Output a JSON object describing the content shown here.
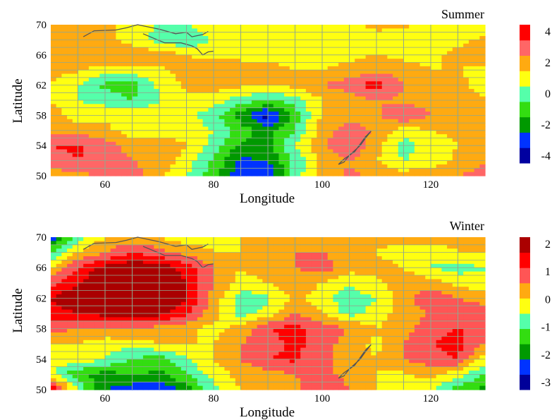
{
  "palettes": {
    "summer": [
      "#0000a0",
      "#0033ff",
      "#009900",
      "#33dd11",
      "#55ffaa",
      "#ffff11",
      "#ffaa11",
      "#ff6666",
      "#ff0000"
    ],
    "winter": [
      "#000099",
      "#0033ff",
      "#009900",
      "#33dd11",
      "#55ffaa",
      "#ffff11",
      "#ffaa11",
      "#ff5555",
      "#ff0000",
      "#aa0000"
    ]
  },
  "chart_data": [
    {
      "type": "heatmap",
      "title": "Summer",
      "xlabel": "Longitude",
      "ylabel": "Latitude",
      "xlim": [
        50,
        130
      ],
      "ylim": [
        50,
        70
      ],
      "x_ticks": [
        "60",
        "80",
        "100",
        "120"
      ],
      "y_ticks": [
        "50",
        "54",
        "58",
        "62",
        "66",
        "70"
      ],
      "colorbar_ticks": [
        "4",
        "2",
        "0",
        "-2",
        "-4"
      ],
      "colorbar_levels": [
        -5,
        -4,
        -3,
        -2,
        -1,
        0,
        1,
        2,
        3,
        4
      ],
      "grid": true,
      "x": [
        50,
        55,
        60,
        65,
        70,
        75,
        80,
        85,
        90,
        95,
        100,
        105,
        110,
        115,
        120,
        125,
        130
      ],
      "y": [
        50,
        52,
        54,
        56,
        58,
        60,
        62,
        64,
        66,
        68,
        70
      ],
      "z": [
        [
          0.5,
          0.8,
          1.0,
          1.5,
          0.3,
          -1.0,
          -2.5,
          -4.8,
          -5.0,
          -1.5,
          0.5,
          1.2,
          0.8,
          0.5,
          0.6,
          1.0,
          1.5
        ],
        [
          1.5,
          2.0,
          1.5,
          1.0,
          0.6,
          -0.5,
          -2.2,
          -4.2,
          -4.0,
          -1.8,
          0.2,
          1.0,
          0.0,
          -1.0,
          -0.5,
          0.2,
          0.8
        ],
        [
          2.0,
          2.2,
          1.5,
          0.6,
          0.5,
          0.2,
          -1.5,
          -3.2,
          -3.2,
          -1.0,
          0.8,
          2.0,
          0.5,
          -1.5,
          -0.5,
          0.0,
          0.4
        ],
        [
          0.8,
          0.5,
          0.2,
          -0.5,
          -0.5,
          -0.5,
          -1.0,
          -2.5,
          -3.5,
          -2.0,
          0.5,
          1.5,
          0.8,
          -0.5,
          0.0,
          0.2,
          0.3
        ],
        [
          0.5,
          -0.5,
          -0.2,
          -0.2,
          -0.5,
          -0.8,
          -1.5,
          -3.5,
          -5.5,
          -2.5,
          0.2,
          0.5,
          0.8,
          2.0,
          1.0,
          0.4,
          0.5
        ],
        [
          0.0,
          -1.0,
          -1.5,
          -2.0,
          -1.0,
          -0.2,
          -0.5,
          -1.5,
          -2.0,
          -1.5,
          0.0,
          0.5,
          1.0,
          0.8,
          0.5,
          0.3,
          0.2
        ],
        [
          0.0,
          -1.0,
          -2.2,
          -2.5,
          -0.8,
          0.2,
          0.5,
          0.2,
          0.0,
          0.3,
          1.0,
          1.5,
          2.5,
          1.0,
          0.0,
          0.3,
          -0.5
        ],
        [
          0.2,
          0.2,
          -0.5,
          -0.3,
          -0.2,
          0.5,
          1.0,
          0.5,
          0.2,
          0.0,
          0.0,
          0.3,
          0.8,
          0.5,
          0.0,
          0.0,
          -0.3
        ],
        [
          0.6,
          0.8,
          1.0,
          0.8,
          0.5,
          0.0,
          -0.5,
          -0.3,
          -0.2,
          -0.3,
          -0.3,
          -0.3,
          0.0,
          -0.3,
          -0.3,
          0.3,
          0.5
        ],
        [
          0.2,
          0.5,
          0.5,
          -0.5,
          -1.5,
          -2.0,
          -0.8,
          -0.3,
          -0.5,
          -0.8,
          -0.5,
          -0.2,
          -0.3,
          -0.5,
          -0.5,
          -0.3,
          0.2
        ],
        [
          0.5,
          0.5,
          0.3,
          -0.5,
          -1.0,
          -1.0,
          -0.5,
          -0.5,
          -0.5,
          -0.5,
          -0.5,
          -0.3,
          0.2,
          0.2,
          -0.3,
          -0.5,
          -0.5
        ]
      ]
    },
    {
      "type": "heatmap",
      "title": "Winter",
      "xlabel": "Longitude",
      "ylabel": "Latitude",
      "xlim": [
        50,
        130
      ],
      "ylim": [
        50,
        70
      ],
      "x_ticks": [
        "60",
        "80",
        "100",
        "120"
      ],
      "y_ticks": [
        "50",
        "54",
        "58",
        "62",
        "66",
        "70"
      ],
      "colorbar_ticks": [
        "2",
        "1",
        "0",
        "-1",
        "-2",
        "-3"
      ],
      "colorbar_levels": [
        -3.0,
        -2.5,
        -2.0,
        -1.5,
        -1.0,
        -0.5,
        0.0,
        0.5,
        1.0,
        1.5,
        2.0
      ],
      "grid": true,
      "x": [
        50,
        55,
        60,
        65,
        70,
        75,
        80,
        85,
        90,
        95,
        100,
        105,
        110,
        115,
        120,
        125,
        130
      ],
      "y": [
        50,
        52,
        54,
        56,
        58,
        60,
        62,
        64,
        66,
        68,
        70
      ],
      "z": [
        [
          1.2,
          -1.0,
          -2.5,
          -2.8,
          -3.0,
          -2.2,
          -1.2,
          -0.5,
          -0.3,
          -0.2,
          0.5,
          0.0,
          -0.5,
          -0.7,
          -1.0,
          -1.8,
          -2.2
        ],
        [
          -0.8,
          -2.0,
          -2.2,
          -2.0,
          -2.1,
          -1.5,
          -0.8,
          -0.3,
          -0.2,
          0.0,
          0.2,
          -0.2,
          -0.5,
          -0.6,
          -0.3,
          -0.8,
          -1.5
        ],
        [
          -1.0,
          -0.5,
          -1.0,
          -1.5,
          -1.8,
          -1.0,
          -0.5,
          0.0,
          0.5,
          0.6,
          0.2,
          -0.4,
          -0.5,
          0.0,
          0.3,
          0.5,
          -0.8
        ],
        [
          -0.5,
          -0.5,
          -0.8,
          -0.8,
          -0.5,
          -0.5,
          -0.5,
          0.0,
          0.3,
          0.6,
          0.3,
          -0.3,
          -0.6,
          0.0,
          0.5,
          0.7,
          0.0
        ],
        [
          0.2,
          0.0,
          0.0,
          0.0,
          -0.2,
          -0.4,
          -0.7,
          -0.3,
          0.5,
          0.7,
          0.3,
          0.0,
          -0.5,
          -0.2,
          0.3,
          0.5,
          0.5
        ],
        [
          0.8,
          1.0,
          1.2,
          1.3,
          1.2,
          0.6,
          -0.3,
          -1.2,
          -0.8,
          0.0,
          -0.5,
          -1.2,
          -0.8,
          -0.2,
          0.0,
          0.2,
          0.3
        ],
        [
          1.0,
          1.5,
          1.8,
          2.2,
          1.8,
          1.0,
          -0.2,
          -1.3,
          -1.1,
          -0.3,
          -0.8,
          -1.3,
          -1.0,
          -0.3,
          0.5,
          0.0,
          -0.2
        ],
        [
          0.2,
          1.0,
          1.5,
          1.9,
          1.6,
          1.0,
          0.0,
          -0.7,
          -0.5,
          -0.2,
          -0.5,
          -0.9,
          -0.6,
          -0.2,
          -0.3,
          -0.7,
          -0.9
        ],
        [
          -0.5,
          0.5,
          1.2,
          1.4,
          1.3,
          0.8,
          0.0,
          -0.5,
          -0.2,
          0.0,
          0.3,
          -0.3,
          -0.3,
          -0.5,
          -1.0,
          -1.2,
          -1.0
        ],
        [
          -1.5,
          -0.5,
          0.0,
          0.5,
          0.2,
          -0.2,
          -0.5,
          -0.5,
          -0.2,
          0.0,
          0.0,
          -0.3,
          -0.5,
          -0.8,
          -1.0,
          -0.5,
          -0.5
        ],
        [
          -3.0,
          -1.2,
          -0.5,
          -0.3,
          -0.5,
          -0.8,
          -0.7,
          -0.5,
          -0.3,
          -0.2,
          -0.1,
          0.0,
          -0.3,
          -0.3,
          -0.2,
          -0.2,
          -0.3
        ]
      ]
    }
  ]
}
